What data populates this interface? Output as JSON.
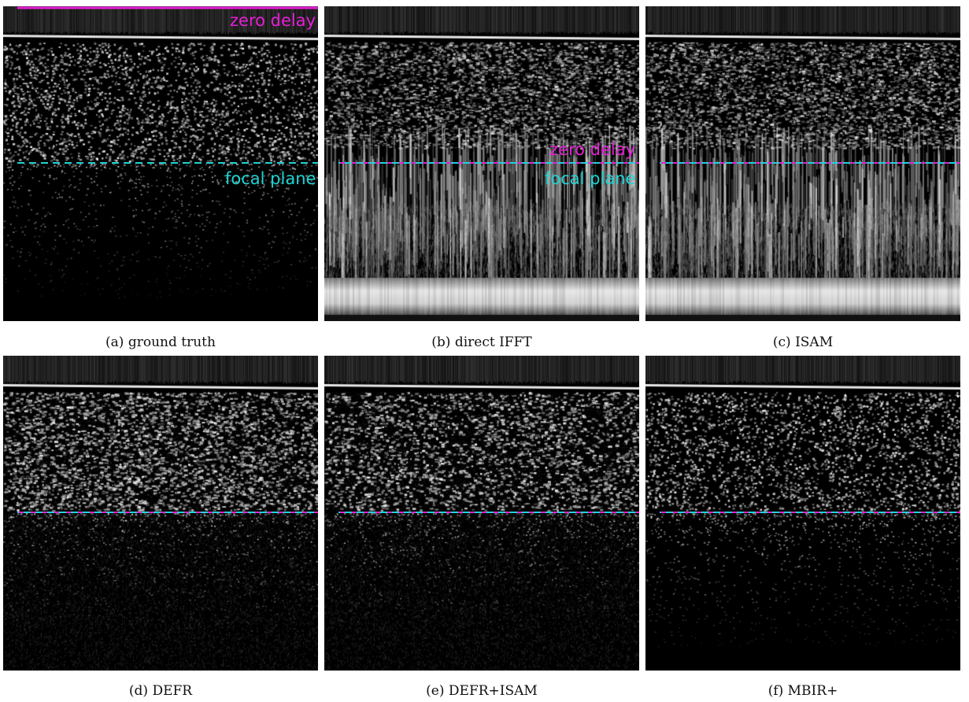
{
  "colors": {
    "zero_delay": "#e61fd6",
    "focal_plane": "#1fd4d4",
    "background": "#ffffff"
  },
  "labels": {
    "zero_delay": "zero delay",
    "focal_plane": "focal plane"
  },
  "panels": [
    {
      "id": "a",
      "caption": "(a) ground truth",
      "style": "ground-truth"
    },
    {
      "id": "b",
      "caption": "(b) direct IFFT",
      "style": "streaky-bright"
    },
    {
      "id": "c",
      "caption": "(c) ISAM",
      "style": "streaky"
    },
    {
      "id": "d",
      "caption": "(d) DEFR",
      "style": "grainy"
    },
    {
      "id": "e",
      "caption": "(e) DEFR+ISAM",
      "style": "grainy-faint"
    },
    {
      "id": "f",
      "caption": "(f) MBIR+",
      "style": "clean"
    }
  ]
}
